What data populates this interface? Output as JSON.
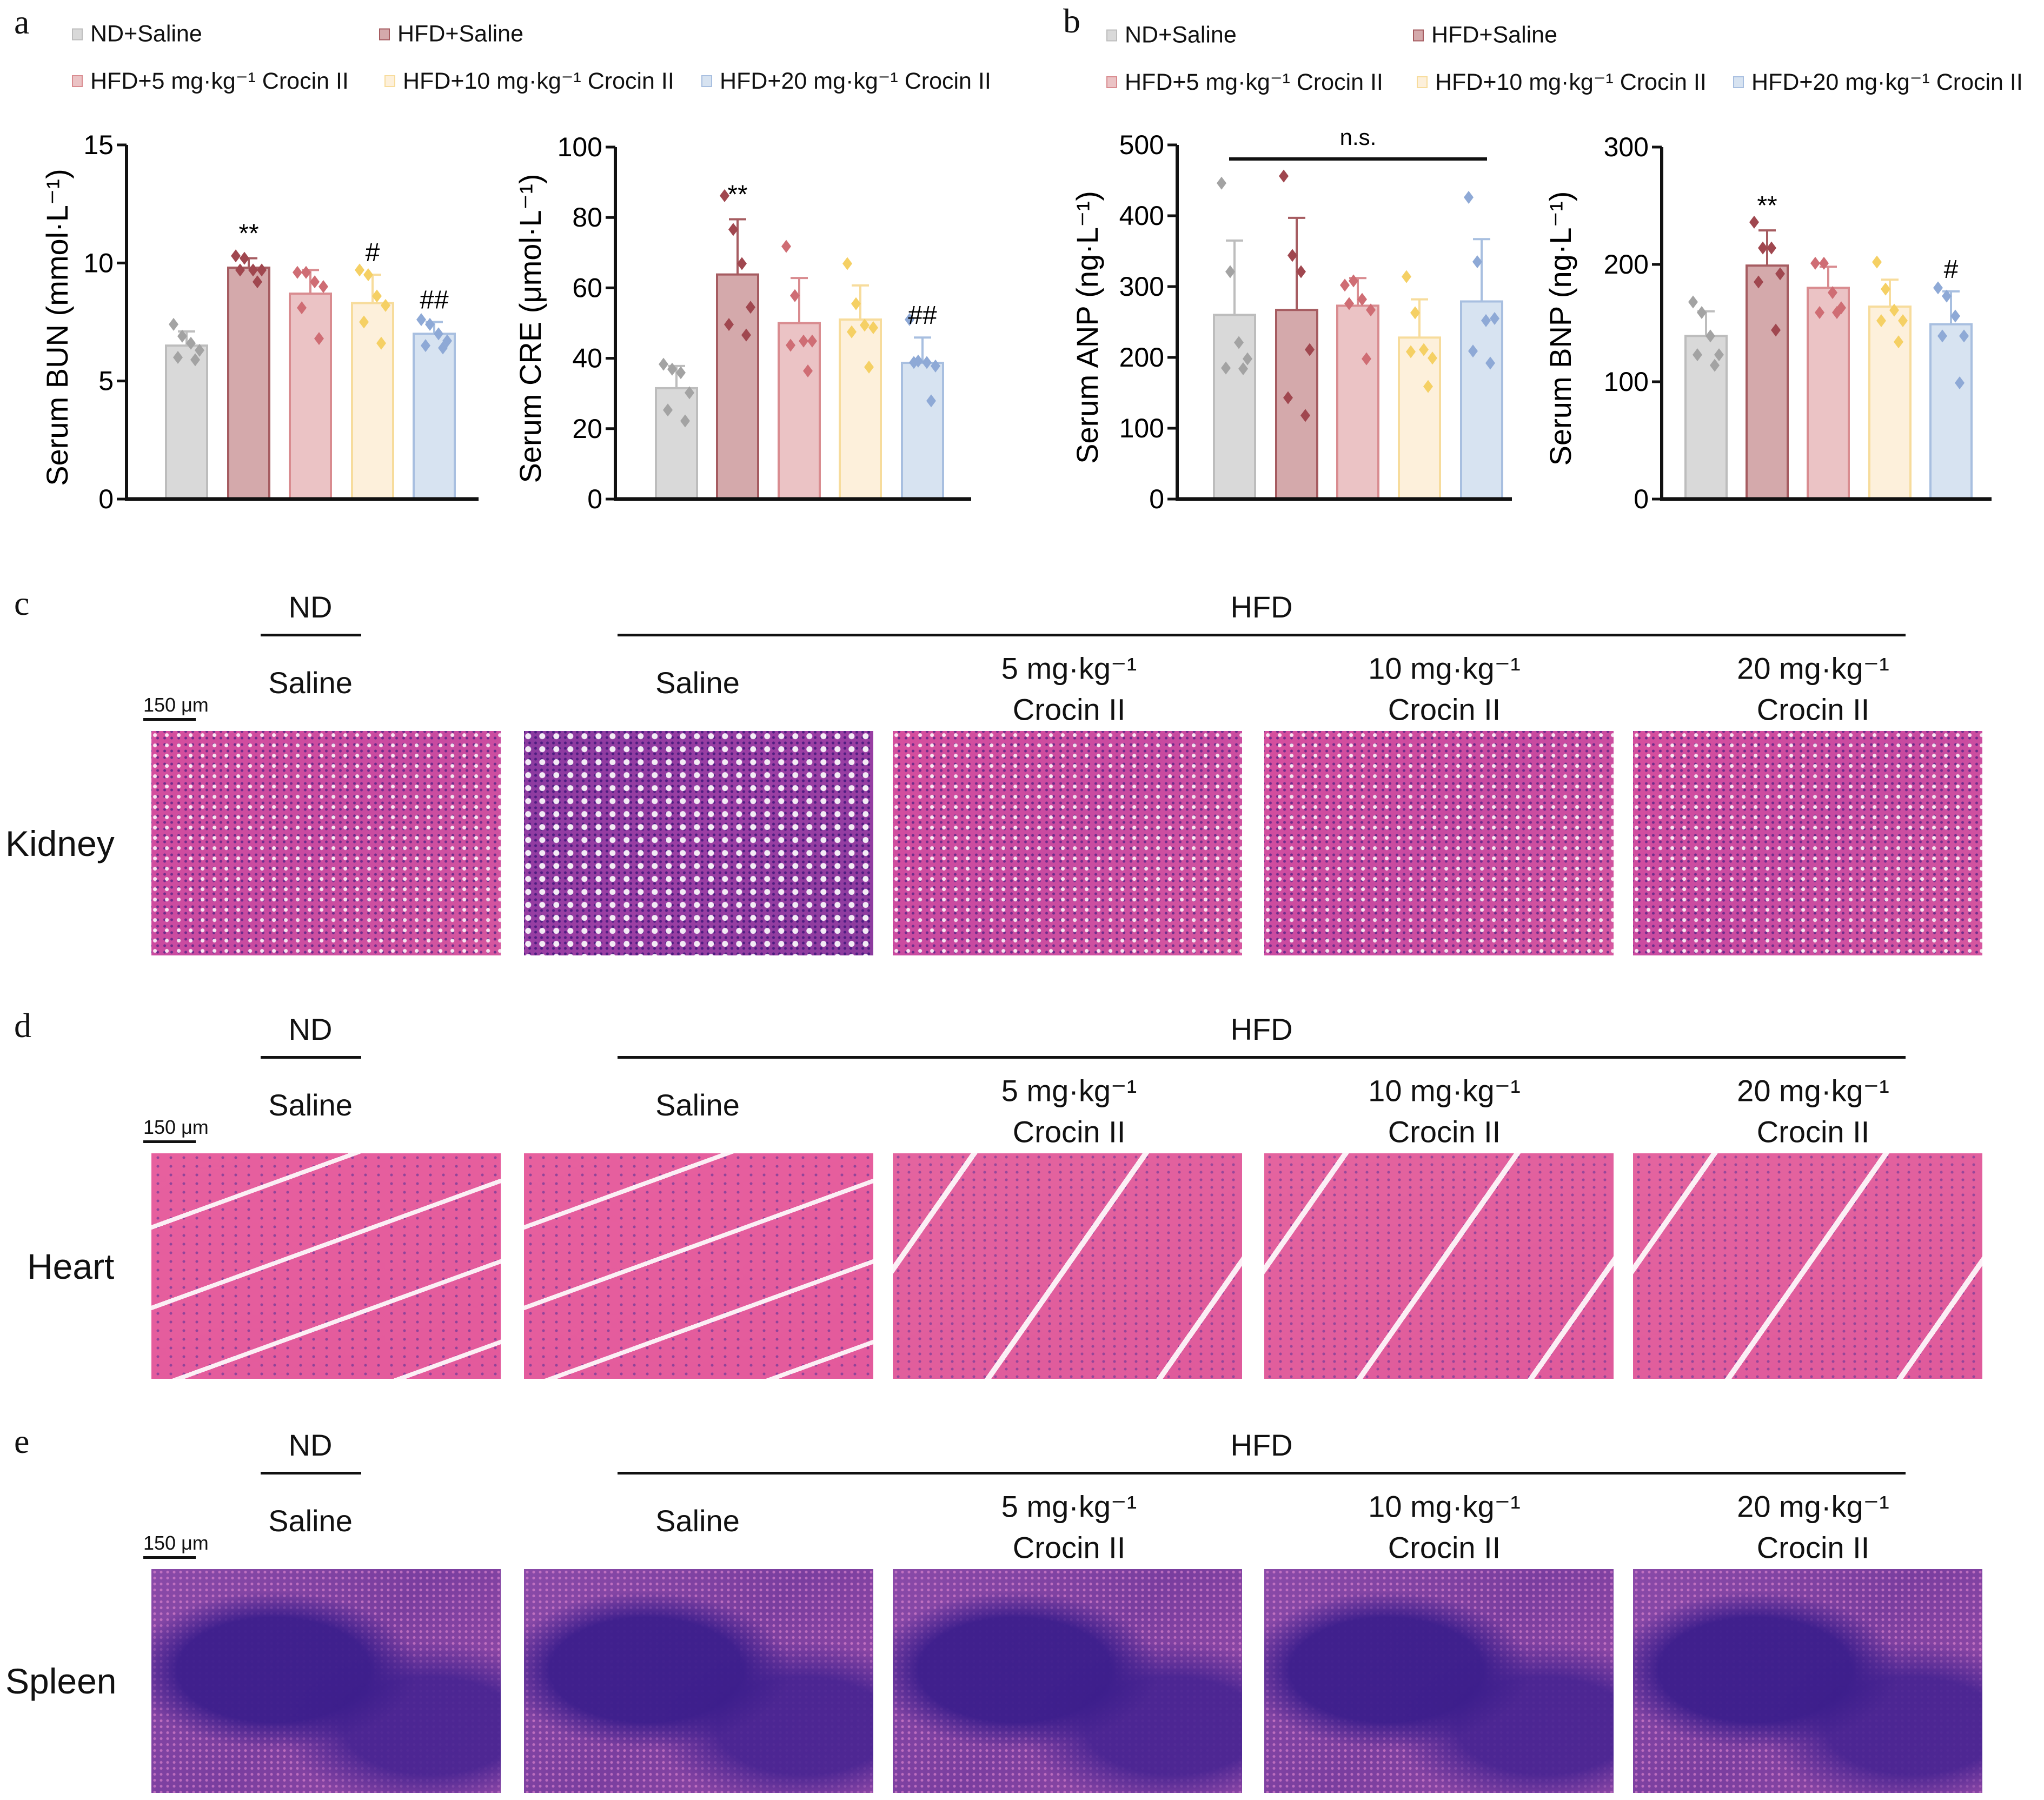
{
  "panels": {
    "a": {
      "letter": "a",
      "legend": [
        "ND+Saline",
        "HFD+Saline",
        "HFD+5 mg·kg⁻¹ Crocin II",
        "HFD+10 mg·kg⁻¹ Crocin II",
        "HFD+20 mg·kg⁻¹ Crocin II"
      ]
    },
    "b": {
      "letter": "b",
      "legend": [
        "ND+Saline",
        "HFD+Saline",
        "HFD+5 mg·kg⁻¹ Crocin II",
        "HFD+10 mg·kg⁻¹ Crocin II",
        "HFD+20 mg·kg⁻¹ Crocin II"
      ]
    }
  },
  "group_colors": {
    "fill": [
      "#d9d9d9",
      "#d4a9ab",
      "#ebc3c5",
      "#fdf0db",
      "#d7e3f1"
    ],
    "stroke": [
      "#bdbdbd",
      "#a65c61",
      "#d98c90",
      "#f7dc9c",
      "#a8bfe0"
    ],
    "point": [
      "#a3a3a3",
      "#a0474f",
      "#cf6d74",
      "#f5d064",
      "#8ea9d6"
    ]
  },
  "chart_data": [
    {
      "type": "bar",
      "ylabel": "Serum BUN (mmol·L⁻¹)",
      "ylim": [
        0,
        15
      ],
      "yticks": [
        0,
        5,
        10,
        15
      ],
      "categories": [
        "ND+Saline",
        "HFD+Saline",
        "HFD+5 mg·kg⁻¹ Crocin II",
        "HFD+10 mg·kg⁻¹ Crocin II",
        "HFD+20 mg·kg⁻¹ Crocin II"
      ],
      "values": [
        6.5,
        9.8,
        8.7,
        8.3,
        7.0
      ],
      "error_upper": [
        7.1,
        10.2,
        9.7,
        9.5,
        7.5
      ],
      "points": [
        [
          7.4,
          6.9,
          6.6,
          6.3,
          6.0,
          5.9
        ],
        [
          10.3,
          10.2,
          9.7,
          9.7,
          9.7,
          9.2
        ],
        [
          9.6,
          9.6,
          9.2,
          9.0,
          8.1,
          6.8
        ],
        [
          9.7,
          9.5,
          8.6,
          8.2,
          7.5,
          6.6
        ],
        [
          7.6,
          7.4,
          7.0,
          6.7,
          6.5,
          6.4
        ]
      ],
      "annotations": [
        "",
        "**",
        "",
        "#",
        "##"
      ]
    },
    {
      "type": "bar",
      "ylabel": "Serum CRE (μmol·L⁻¹)",
      "ylim": [
        0,
        100
      ],
      "yticks": [
        0,
        20,
        40,
        60,
        80,
        100
      ],
      "categories": [
        "ND+Saline",
        "HFD+Saline",
        "HFD+5 mg·kg⁻¹ Crocin II",
        "HFD+10 mg·kg⁻¹ Crocin II",
        "HFD+20 mg·kg⁻¹ Crocin II"
      ],
      "values": [
        31.5,
        63.8,
        50,
        51,
        38.7
      ],
      "error_upper": [
        37.8,
        79.5,
        62.8,
        60.7,
        45.9
      ],
      "points": [
        [
          38.3,
          36.9,
          35.9,
          30.2,
          25.3,
          22.2
        ],
        [
          86.2,
          76.6,
          66.9,
          54.5,
          49.6,
          46.6
        ],
        [
          71.8,
          57.8,
          44.9,
          44.9,
          43.7,
          36.4
        ],
        [
          66.9,
          55.5,
          49.4,
          48.7,
          47.5,
          37.5
        ],
        [
          51,
          39.2,
          38.8,
          37.8,
          38.8,
          27.9
        ]
      ],
      "annotations": [
        "",
        "**",
        "",
        "",
        "##"
      ]
    },
    {
      "type": "bar",
      "ylabel": "Serum ANP (ng·L⁻¹)",
      "ylim": [
        0,
        500
      ],
      "yticks": [
        0,
        100,
        200,
        300,
        400,
        500
      ],
      "categories": [
        "ND+Saline",
        "HFD+Saline",
        "HFD+5 mg·kg⁻¹ Crocin II",
        "HFD+10 mg·kg⁻¹ Crocin II",
        "HFD+20 mg·kg⁻¹ Crocin II"
      ],
      "values": [
        260,
        267,
        273,
        228,
        279
      ],
      "error_upper": [
        365,
        397,
        312,
        282,
        367
      ],
      "points": [
        [
          446,
          321,
          221,
          198,
          185,
          184
        ],
        [
          456,
          344,
          321,
          211,
          143,
          118
        ],
        [
          302,
          308,
          282,
          267,
          276,
          198
        ],
        [
          314,
          263,
          211,
          199,
          208,
          159
        ],
        [
          426,
          335,
          252,
          255,
          209,
          192
        ]
      ],
      "annotations": [
        "",
        "",
        "",
        "",
        ""
      ],
      "bracket_label": "n.s."
    },
    {
      "type": "bar",
      "ylabel": "Serum BNP (ng·L⁻¹)",
      "ylim": [
        0,
        300
      ],
      "yticks": [
        0,
        100,
        200,
        300
      ],
      "categories": [
        "ND+Saline",
        "HFD+Saline",
        "HFD+5 mg·kg⁻¹ Crocin II",
        "HFD+10 mg·kg⁻¹ Crocin II",
        "HFD+20 mg·kg⁻¹ Crocin II"
      ],
      "values": [
        139,
        199,
        180,
        164,
        149
      ],
      "error_upper": [
        160,
        229,
        198,
        187,
        177
      ],
      "points": [
        [
          168,
          159,
          139,
          123,
          123,
          114
        ],
        [
          236,
          214,
          214,
          192,
          185,
          144
        ],
        [
          201,
          201,
          176,
          163,
          159,
          159
        ],
        [
          202,
          179,
          161,
          152,
          152,
          134
        ],
        [
          180,
          173,
          156,
          139,
          139,
          99
        ]
      ],
      "annotations": [
        "",
        "**",
        "",
        "",
        "#"
      ]
    }
  ],
  "histology": {
    "diet_nd": "ND",
    "diet_hfd": "HFD",
    "columns": [
      "Saline",
      "Saline",
      "5 mg·kg⁻¹\nCrocin II",
      "10 mg·kg⁻¹\nCrocin II",
      "20 mg·kg⁻¹\nCrocin II"
    ],
    "scale_bar": "150 μm",
    "rows": [
      {
        "letter": "c",
        "tissue": "Kidney"
      },
      {
        "letter": "d",
        "tissue": "Heart"
      },
      {
        "letter": "e",
        "tissue": "Spleen"
      }
    ]
  }
}
